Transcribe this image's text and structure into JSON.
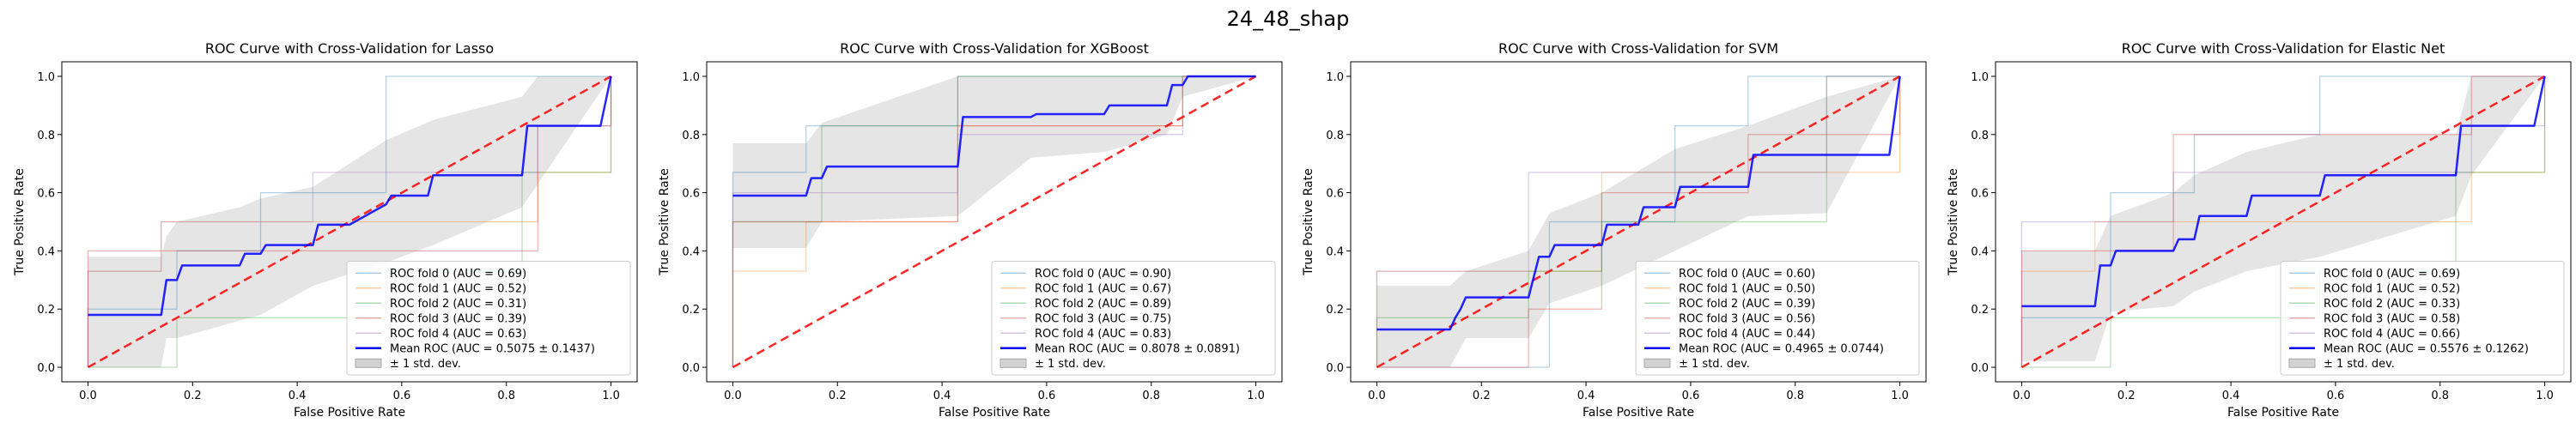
{
  "figure": {
    "suptitle": "24_48_shap"
  },
  "colors": {
    "fold_lines": [
      "#1f77b4",
      "#ff7f0e",
      "#2ca02c",
      "#d62728",
      "#9467bd"
    ],
    "mean_line": "#0000ff",
    "chance_line": "#ff0000",
    "std_band": "#d3d3d3"
  },
  "chart_data": [
    {
      "type": "line",
      "title": "ROC Curve with Cross-Validation for Lasso",
      "xlabel": "False Positive Rate",
      "ylabel": "True Positive Rate",
      "xlim": [
        -0.05,
        1.05
      ],
      "ylim": [
        -0.05,
        1.05
      ],
      "xticks": [
        "0.0",
        "0.2",
        "0.4",
        "0.6",
        "0.8",
        "1.0"
      ],
      "yticks": [
        "0.0",
        "0.2",
        "0.4",
        "0.6",
        "0.8",
        "1.0"
      ],
      "legend_position": "lower right",
      "series": [
        {
          "name": "ROC fold 0 (AUC = 0.69)",
          "kind": "fold",
          "x": [
            0,
            0,
            0.17,
            0.17,
            0.33,
            0.33,
            0.57,
            0.57,
            1,
            1
          ],
          "y": [
            0,
            0.2,
            0.2,
            0.4,
            0.4,
            0.6,
            0.6,
            1.0,
            1.0,
            1.0
          ]
        },
        {
          "name": "ROC fold 1 (AUC = 0.52)",
          "kind": "fold",
          "x": [
            0,
            0,
            0.14,
            0.14,
            0.43,
            0.43,
            0.86,
            0.86,
            1,
            1
          ],
          "y": [
            0,
            0.33,
            0.33,
            0.5,
            0.5,
            0.5,
            0.5,
            0.67,
            0.67,
            1.0
          ]
        },
        {
          "name": "ROC fold 2 (AUC = 0.31)",
          "kind": "fold",
          "x": [
            0,
            0,
            0.17,
            0.17,
            0.33,
            0.33,
            0.57,
            0.57,
            0.83,
            0.83,
            1,
            1
          ],
          "y": [
            0,
            0,
            0,
            0.17,
            0.17,
            0.17,
            0.17,
            0.33,
            0.33,
            0.67,
            0.67,
            1.0
          ]
        },
        {
          "name": "ROC fold 3 (AUC = 0.39)",
          "kind": "fold",
          "x": [
            0,
            0,
            0.14,
            0.14,
            0.43,
            0.43,
            0.57,
            0.57,
            0.86,
            0.86,
            1,
            1
          ],
          "y": [
            0,
            0.4,
            0.4,
            0.4,
            0.4,
            0.4,
            0.4,
            0.4,
            0.4,
            0.83,
            0.83,
            1.0
          ]
        },
        {
          "name": "ROC fold 4 (AUC = 0.63)",
          "kind": "fold",
          "x": [
            0,
            0,
            0.14,
            0.14,
            0.29,
            0.29,
            0.43,
            0.43,
            0.57,
            0.57,
            0.86,
            0.86,
            1,
            1
          ],
          "y": [
            0,
            0.33,
            0.33,
            0.5,
            0.5,
            0.5,
            0.5,
            0.67,
            0.67,
            0.67,
            0.67,
            0.83,
            0.83,
            1.0
          ]
        },
        {
          "name": "Mean ROC (AUC = 0.5075 ± 0.1437)",
          "kind": "mean",
          "x": [
            0,
            0.14,
            0.15,
            0.17,
            0.18,
            0.29,
            0.3,
            0.33,
            0.34,
            0.43,
            0.44,
            0.5,
            0.57,
            0.58,
            0.65,
            0.66,
            0.83,
            0.84,
            0.98,
            1.0
          ],
          "y": [
            0.18,
            0.18,
            0.3,
            0.3,
            0.35,
            0.35,
            0.39,
            0.39,
            0.42,
            0.42,
            0.49,
            0.49,
            0.56,
            0.59,
            0.59,
            0.66,
            0.66,
            0.83,
            0.83,
            1.0
          ]
        },
        {
          "name": "± 1 std. dev.",
          "kind": "band",
          "x": [
            0,
            0.14,
            0.15,
            0.17,
            0.29,
            0.33,
            0.43,
            0.57,
            0.66,
            0.83,
            0.86,
            1.0
          ],
          "upper": [
            0.38,
            0.38,
            0.45,
            0.5,
            0.55,
            0.58,
            0.62,
            0.78,
            0.85,
            0.93,
            1.0,
            1.0
          ],
          "lower": [
            0.0,
            0.0,
            0.1,
            0.1,
            0.16,
            0.18,
            0.28,
            0.36,
            0.42,
            0.55,
            0.63,
            1.0
          ]
        },
        {
          "name": "chance",
          "kind": "chance",
          "x": [
            0,
            1
          ],
          "y": [
            0,
            1
          ]
        }
      ]
    },
    {
      "type": "line",
      "title": "ROC Curve with Cross-Validation for XGBoost",
      "xlabel": "False Positive Rate",
      "ylabel": "True Positive Rate",
      "xlim": [
        -0.05,
        1.05
      ],
      "ylim": [
        -0.05,
        1.05
      ],
      "xticks": [
        "0.0",
        "0.2",
        "0.4",
        "0.6",
        "0.8",
        "1.0"
      ],
      "yticks": [
        "0.0",
        "0.2",
        "0.4",
        "0.6",
        "0.8",
        "1.0"
      ],
      "legend_position": "lower right",
      "series": [
        {
          "name": "ROC fold 0 (AUC = 0.90)",
          "kind": "fold",
          "x": [
            0,
            0,
            0.14,
            0.14,
            0.43,
            0.43,
            0.86,
            0.86,
            1
          ],
          "y": [
            0,
            0.67,
            0.67,
            0.83,
            0.83,
            1.0,
            1.0,
            1.0,
            1.0
          ]
        },
        {
          "name": "ROC fold 1 (AUC = 0.67)",
          "kind": "fold",
          "x": [
            0,
            0,
            0.14,
            0.14,
            0.43,
            0.43,
            0.86,
            0.86,
            1
          ],
          "y": [
            0,
            0.33,
            0.33,
            0.5,
            0.5,
            0.83,
            0.83,
            1.0,
            1.0
          ]
        },
        {
          "name": "ROC fold 2 (AUC = 0.89)",
          "kind": "fold",
          "x": [
            0,
            0,
            0.17,
            0.17,
            0.43,
            0.43,
            0.83,
            0.83,
            1
          ],
          "y": [
            0,
            0.5,
            0.5,
            0.83,
            0.83,
            1.0,
            1.0,
            1.0,
            1.0
          ]
        },
        {
          "name": "ROC fold 3 (AUC = 0.75)",
          "kind": "fold",
          "x": [
            0,
            0,
            0.43,
            0.43,
            0.86,
            0.86,
            1
          ],
          "y": [
            0,
            0.5,
            0.5,
            0.83,
            0.83,
            1.0,
            1.0
          ]
        },
        {
          "name": "ROC fold 4 (AUC = 0.83)",
          "kind": "fold",
          "x": [
            0,
            0,
            0.14,
            0.14,
            0.43,
            0.43,
            0.86,
            0.86,
            1
          ],
          "y": [
            0,
            0.6,
            0.6,
            0.6,
            0.6,
            0.8,
            0.8,
            1.0,
            1.0
          ]
        },
        {
          "name": "Mean ROC (AUC = 0.8078 ± 0.0891)",
          "kind": "mean",
          "x": [
            0,
            0.14,
            0.15,
            0.17,
            0.18,
            0.43,
            0.44,
            0.57,
            0.58,
            0.71,
            0.72,
            0.83,
            0.84,
            0.86,
            0.87,
            1.0
          ],
          "y": [
            0.59,
            0.59,
            0.65,
            0.65,
            0.69,
            0.69,
            0.86,
            0.86,
            0.87,
            0.87,
            0.9,
            0.9,
            0.97,
            0.97,
            1.0,
            1.0
          ]
        },
        {
          "name": "± 1 std. dev.",
          "kind": "band",
          "x": [
            0,
            0.14,
            0.17,
            0.43,
            0.57,
            0.71,
            0.83,
            0.86,
            1.0
          ],
          "upper": [
            0.77,
            0.77,
            0.84,
            1.0,
            1.0,
            1.0,
            1.0,
            1.0,
            1.0
          ],
          "lower": [
            0.41,
            0.41,
            0.5,
            0.52,
            0.72,
            0.74,
            0.8,
            0.93,
            1.0
          ]
        },
        {
          "name": "chance",
          "kind": "chance",
          "x": [
            0,
            1
          ],
          "y": [
            0,
            1
          ]
        }
      ]
    },
    {
      "type": "line",
      "title": "ROC Curve with Cross-Validation for SVM",
      "xlabel": "False Positive Rate",
      "ylabel": "True Positive Rate",
      "xlim": [
        -0.05,
        1.05
      ],
      "ylim": [
        -0.05,
        1.05
      ],
      "xticks": [
        "0.0",
        "0.2",
        "0.4",
        "0.6",
        "0.8",
        "1.0"
      ],
      "yticks": [
        "0.0",
        "0.2",
        "0.4",
        "0.6",
        "0.8",
        "1.0"
      ],
      "legend_position": "lower right",
      "series": [
        {
          "name": "ROC fold 0 (AUC = 0.60)",
          "kind": "fold",
          "x": [
            0,
            0,
            0.33,
            0.33,
            0.57,
            0.57,
            0.71,
            0.71,
            1
          ],
          "y": [
            0,
            0,
            0,
            0.5,
            0.5,
            0.83,
            0.83,
            1.0,
            1.0
          ]
        },
        {
          "name": "ROC fold 1 (AUC = 0.50)",
          "kind": "fold",
          "x": [
            0,
            0,
            0.14,
            0.14,
            0.43,
            0.43,
            0.71,
            0.71,
            1,
            1
          ],
          "y": [
            0,
            0.33,
            0.33,
            0.33,
            0.33,
            0.67,
            0.67,
            0.67,
            0.67,
            1.0
          ]
        },
        {
          "name": "ROC fold 2 (AUC = 0.39)",
          "kind": "fold",
          "x": [
            0,
            0,
            0.17,
            0.17,
            0.29,
            0.29,
            0.43,
            0.43,
            0.86,
            0.86,
            1
          ],
          "y": [
            0,
            0.17,
            0.17,
            0.17,
            0.17,
            0.33,
            0.33,
            0.5,
            0.5,
            1.0,
            1.0
          ]
        },
        {
          "name": "ROC fold 3 (AUC = 0.56)",
          "kind": "fold",
          "x": [
            0,
            0,
            0.29,
            0.29,
            0.43,
            0.43,
            0.71,
            0.71,
            1,
            1
          ],
          "y": [
            0,
            0,
            0,
            0.2,
            0.2,
            0.6,
            0.6,
            0.8,
            0.8,
            1.0
          ]
        },
        {
          "name": "ROC fold 4 (AUC = 0.44)",
          "kind": "fold",
          "x": [
            0,
            0,
            0.14,
            0.14,
            0.29,
            0.29,
            0.57,
            0.57,
            0.86,
            0.86,
            1
          ],
          "y": [
            0,
            0.33,
            0.33,
            0.33,
            0.33,
            0.67,
            0.67,
            0.67,
            0.67,
            1.0,
            1.0
          ]
        },
        {
          "name": "Mean ROC (AUC = 0.4965 ± 0.0744)",
          "kind": "mean",
          "x": [
            0,
            0.14,
            0.15,
            0.16,
            0.17,
            0.29,
            0.3,
            0.31,
            0.33,
            0.34,
            0.43,
            0.44,
            0.5,
            0.51,
            0.57,
            0.58,
            0.71,
            0.72,
            0.98,
            1.0
          ],
          "y": [
            0.13,
            0.13,
            0.17,
            0.2,
            0.24,
            0.24,
            0.31,
            0.38,
            0.38,
            0.42,
            0.42,
            0.49,
            0.49,
            0.55,
            0.55,
            0.62,
            0.62,
            0.73,
            0.73,
            1.0
          ]
        },
        {
          "name": "± 1 std. dev.",
          "kind": "band",
          "x": [
            0,
            0.14,
            0.17,
            0.29,
            0.33,
            0.43,
            0.57,
            0.71,
            0.86,
            1.0
          ],
          "upper": [
            0.28,
            0.28,
            0.33,
            0.4,
            0.53,
            0.6,
            0.75,
            0.83,
            0.93,
            1.0
          ],
          "lower": [
            0.0,
            0.0,
            0.1,
            0.1,
            0.22,
            0.28,
            0.4,
            0.52,
            0.53,
            1.0
          ]
        },
        {
          "name": "chance",
          "kind": "chance",
          "x": [
            0,
            1
          ],
          "y": [
            0,
            1
          ]
        }
      ]
    },
    {
      "type": "line",
      "title": "ROC Curve with Cross-Validation for Elastic Net",
      "xlabel": "False Positive Rate",
      "ylabel": "True Positive Rate",
      "xlim": [
        -0.05,
        1.05
      ],
      "ylim": [
        -0.05,
        1.05
      ],
      "xticks": [
        "0.0",
        "0.2",
        "0.4",
        "0.6",
        "0.8",
        "1.0"
      ],
      "yticks": [
        "0.0",
        "0.2",
        "0.4",
        "0.6",
        "0.8",
        "1.0"
      ],
      "legend_position": "lower right",
      "series": [
        {
          "name": "ROC fold 0 (AUC = 0.69)",
          "kind": "fold",
          "x": [
            0,
            0,
            0.17,
            0.17,
            0.33,
            0.33,
            0.57,
            0.57,
            1
          ],
          "y": [
            0,
            0.17,
            0.17,
            0.6,
            0.6,
            0.8,
            0.8,
            1.0,
            1.0
          ]
        },
        {
          "name": "ROC fold 1 (AUC = 0.52)",
          "kind": "fold",
          "x": [
            0,
            0,
            0.14,
            0.14,
            0.43,
            0.43,
            0.86,
            0.86,
            1,
            1
          ],
          "y": [
            0,
            0.33,
            0.33,
            0.5,
            0.5,
            0.5,
            0.5,
            0.67,
            0.67,
            1.0
          ]
        },
        {
          "name": "ROC fold 2 (AUC = 0.33)",
          "kind": "fold",
          "x": [
            0,
            0,
            0.17,
            0.17,
            0.33,
            0.33,
            0.57,
            0.57,
            0.83,
            0.83,
            1,
            1
          ],
          "y": [
            0,
            0,
            0,
            0.17,
            0.17,
            0.17,
            0.17,
            0.33,
            0.33,
            0.67,
            0.67,
            1.0
          ]
        },
        {
          "name": "ROC fold 3 (AUC = 0.58)",
          "kind": "fold",
          "x": [
            0,
            0,
            0.14,
            0.14,
            0.29,
            0.29,
            0.57,
            0.57,
            0.86,
            0.86,
            1
          ],
          "y": [
            0,
            0.4,
            0.4,
            0.4,
            0.4,
            0.8,
            0.8,
            0.8,
            0.8,
            1.0,
            1.0
          ]
        },
        {
          "name": "ROC fold 4 (AUC = 0.66)",
          "kind": "fold",
          "x": [
            0,
            0,
            0.14,
            0.14,
            0.29,
            0.29,
            0.57,
            0.57,
            0.86,
            0.86,
            1,
            1
          ],
          "y": [
            0,
            0.5,
            0.5,
            0.5,
            0.5,
            0.67,
            0.67,
            0.67,
            0.67,
            0.83,
            0.83,
            1.0
          ]
        },
        {
          "name": "Mean ROC (AUC = 0.5576 ± 0.1262)",
          "kind": "mean",
          "x": [
            0,
            0.14,
            0.15,
            0.17,
            0.18,
            0.29,
            0.3,
            0.33,
            0.34,
            0.43,
            0.44,
            0.57,
            0.58,
            0.83,
            0.84,
            0.98,
            1.0
          ],
          "y": [
            0.21,
            0.21,
            0.35,
            0.35,
            0.4,
            0.4,
            0.44,
            0.44,
            0.52,
            0.52,
            0.59,
            0.59,
            0.66,
            0.66,
            0.83,
            0.83,
            1.0
          ]
        },
        {
          "name": "± 1 std. dev.",
          "kind": "band",
          "x": [
            0,
            0.14,
            0.17,
            0.29,
            0.33,
            0.43,
            0.57,
            0.83,
            0.86,
            1.0
          ],
          "upper": [
            0.4,
            0.4,
            0.52,
            0.6,
            0.66,
            0.74,
            0.8,
            0.8,
            1.0,
            1.0
          ],
          "lower": [
            0.02,
            0.02,
            0.19,
            0.21,
            0.26,
            0.33,
            0.38,
            0.52,
            0.66,
            1.0
          ]
        },
        {
          "name": "chance",
          "kind": "chance",
          "x": [
            0,
            1
          ],
          "y": [
            0,
            1
          ]
        }
      ]
    }
  ]
}
